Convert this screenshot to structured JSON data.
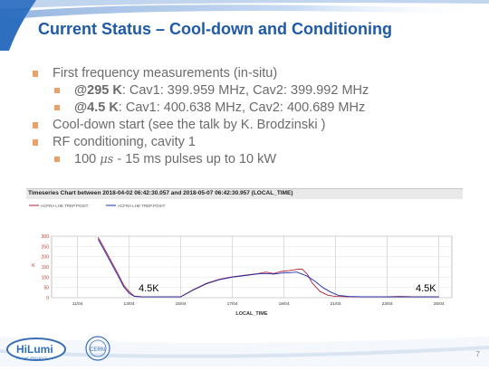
{
  "slide": {
    "title": "Current Status – Cool-down and Conditioning",
    "bullets": [
      {
        "text": "First frequency measurements  (in-situ)"
      },
      {
        "prefix": "@295 K",
        "text": ": Cav1:  399.959 MHz, Cav2:  399.992 MHz"
      },
      {
        "prefix": "@4.5 K",
        "text": ":  Cav1: 400.638 MHz, Cav2: 400.689 MHz"
      },
      {
        "text": "Cool-down start (see the talk by K. Brodzinski  )"
      },
      {
        "text": "RF conditioning,  cavity 1"
      },
      {
        "pre": "100 ",
        "mu": "μs",
        "text": " - 15 ms pulses up to 10 kW"
      }
    ],
    "page_number": "7",
    "footer_logo_text": "HiLumi",
    "footer_logo_subtext": "HL-LHC PROJECT",
    "cern_logo_text": "CERN"
  },
  "colors": {
    "title": "#1f5aa6",
    "bullet_marker": "#e8a26b",
    "series1": "#b0203a",
    "series2": "#1f2fb0"
  },
  "chart_data": {
    "type": "line",
    "title": "Timeseries Chart between 2018-04-02 06:42:30.057 and 2018-05-07 06:42:30.957 (LOCAL_TIME)",
    "legend": [
      "ACFRA LHE TREP.POSIT",
      "ACFRA LHE TREP.POSIT"
    ],
    "legend_placement": "top-left",
    "xlabel": "LOCAL_TIME",
    "ylabel": "K",
    "x_ticks": [
      "11/04",
      "13/04",
      "15/04",
      "17/04",
      "19/04",
      "21/04",
      "23/04",
      "25/04"
    ],
    "y_ticks": [
      "0",
      "50",
      "100",
      "150",
      "200",
      "250",
      "300"
    ],
    "ylim": [
      0,
      300
    ],
    "xlim": [
      10,
      25.5
    ],
    "grid": true,
    "annotations": [
      "4.5K",
      "4.5K"
    ],
    "series": [
      {
        "points": [
          [
            11.8,
            295
          ],
          [
            12.0,
            250
          ],
          [
            12.3,
            180
          ],
          [
            12.6,
            110
          ],
          [
            12.8,
            60
          ],
          [
            13.0,
            30
          ],
          [
            13.2,
            8
          ],
          [
            13.5,
            5
          ],
          [
            14.0,
            4
          ],
          [
            14.5,
            5
          ],
          [
            15.0,
            5
          ],
          [
            15.5,
            40
          ],
          [
            16.0,
            70
          ],
          [
            16.5,
            90
          ],
          [
            17.0,
            102
          ],
          [
            17.5,
            110
          ],
          [
            18.0,
            118
          ],
          [
            18.3,
            125
          ],
          [
            18.6,
            118
          ],
          [
            18.9,
            128
          ],
          [
            19.2,
            132
          ],
          [
            19.5,
            138
          ],
          [
            19.7,
            140
          ],
          [
            19.9,
            115
          ],
          [
            20.1,
            70
          ],
          [
            20.4,
            30
          ],
          [
            20.7,
            12
          ],
          [
            21.0,
            6
          ],
          [
            21.5,
            5
          ],
          [
            22.0,
            5
          ],
          [
            22.5,
            5
          ],
          [
            23.0,
            5
          ],
          [
            23.5,
            6
          ],
          [
            24.0,
            5
          ],
          [
            25.0,
            5
          ]
        ]
      },
      {
        "points": [
          [
            11.8,
            285
          ],
          [
            12.0,
            240
          ],
          [
            12.3,
            170
          ],
          [
            12.6,
            100
          ],
          [
            12.8,
            52
          ],
          [
            13.0,
            22
          ],
          [
            13.2,
            6
          ],
          [
            13.5,
            4
          ],
          [
            14.0,
            4
          ],
          [
            14.5,
            4
          ],
          [
            15.0,
            4
          ],
          [
            15.5,
            38
          ],
          [
            16.0,
            68
          ],
          [
            16.5,
            88
          ],
          [
            17.0,
            100
          ],
          [
            17.5,
            108
          ],
          [
            18.0,
            116
          ],
          [
            18.3,
            118
          ],
          [
            18.6,
            115
          ],
          [
            18.9,
            120
          ],
          [
            19.2,
            122
          ],
          [
            19.5,
            125
          ],
          [
            19.9,
            105
          ],
          [
            20.2,
            80
          ],
          [
            20.5,
            50
          ],
          [
            20.8,
            28
          ],
          [
            21.1,
            12
          ],
          [
            21.5,
            6
          ],
          [
            22.0,
            5
          ],
          [
            23.0,
            4
          ],
          [
            24.0,
            4
          ],
          [
            25.0,
            4
          ]
        ]
      }
    ]
  }
}
